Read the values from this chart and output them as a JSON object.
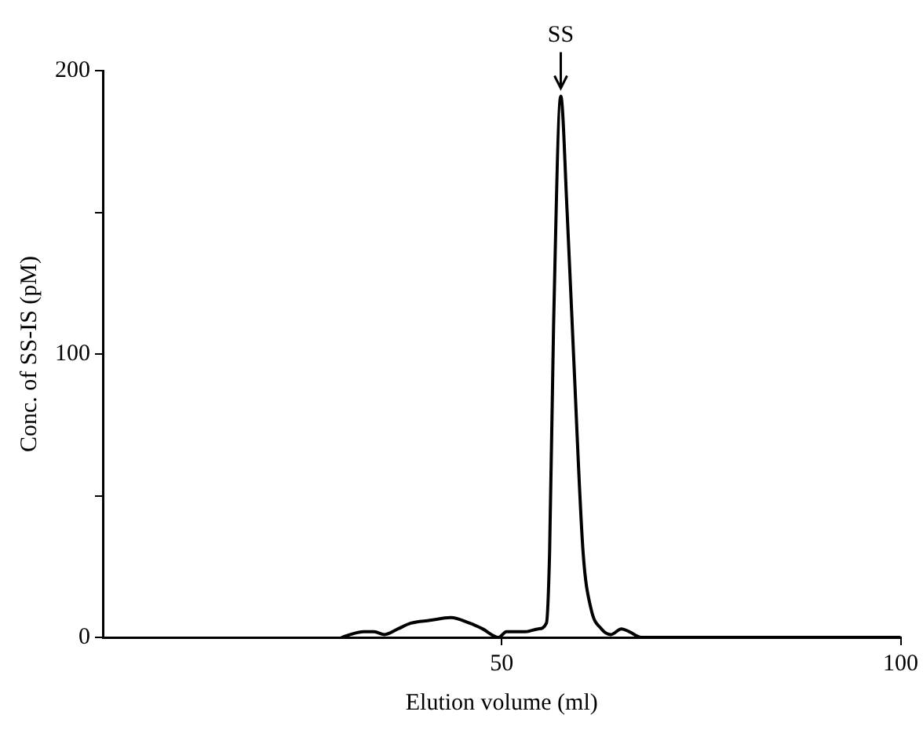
{
  "chart_data": {
    "type": "line",
    "xlabel": "Elution volume (ml)",
    "ylabel": "Conc. of SS-IS (pM)",
    "x": [
      30,
      31,
      32.7,
      34,
      35.3,
      37,
      38.6,
      41,
      43.6,
      46,
      47.6,
      49.6,
      50.6,
      53,
      54.6,
      55.6,
      56,
      56.5,
      57.4,
      58.2,
      59,
      60.2,
      61.2,
      62.5,
      63.7,
      65,
      66,
      67.5,
      70,
      80,
      90,
      100
    ],
    "series": [
      {
        "color": "#000000",
        "values": [
          0,
          1,
          2,
          2,
          1,
          3,
          5,
          6,
          7,
          5,
          3,
          0,
          2,
          2,
          3,
          5,
          30,
          110,
          191,
          150,
          100,
          30,
          10,
          3,
          1,
          3,
          2,
          0,
          0,
          0,
          0,
          0
        ]
      }
    ],
    "xlim": [
      0,
      100
    ],
    "xticks": [
      50,
      100
    ],
    "ylim": [
      0,
      200
    ],
    "yticks": [
      0,
      {
        "value": 50,
        "label": null
      },
      100,
      {
        "value": 150,
        "label": null
      },
      200
    ],
    "annotations": [
      {
        "text": "SS",
        "x": 57.4,
        "y": 191
      }
    ],
    "grid": false,
    "legend": false,
    "marker": "none",
    "line_style": "solid"
  }
}
